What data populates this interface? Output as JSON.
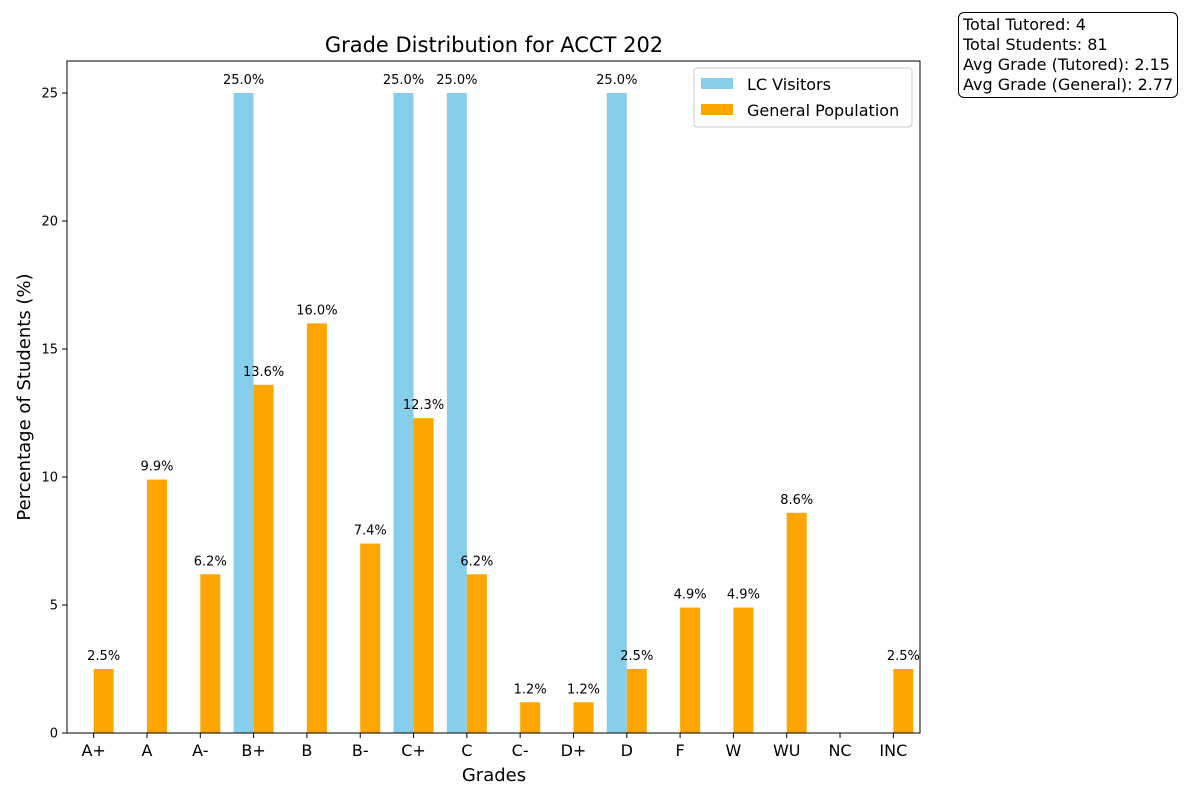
{
  "chart_data": {
    "type": "bar",
    "title": "Grade Distribution for ACCT 202",
    "xlabel": "Grades",
    "ylabel": "Percentage of Students (%)",
    "categories": [
      "A+",
      "A",
      "A-",
      "B+",
      "B",
      "B-",
      "C+",
      "C",
      "C-",
      "D+",
      "D",
      "F",
      "W",
      "WU",
      "NC",
      "INC"
    ],
    "ylim": [
      0,
      26.25
    ],
    "yticks": [
      0,
      5,
      10,
      15,
      20,
      25
    ],
    "grid": false,
    "legend_position": "top-right",
    "series": [
      {
        "name": "LC Visitors",
        "color": "#87ceeb",
        "values": [
          0,
          0,
          0,
          25.0,
          0,
          0,
          25.0,
          25.0,
          0,
          0,
          25.0,
          0,
          0,
          0,
          0,
          0
        ],
        "labels": [
          "",
          "",
          "",
          "25.0%",
          "",
          "",
          "25.0%",
          "25.0%",
          "",
          "",
          "25.0%",
          "",
          "",
          "",
          "",
          ""
        ]
      },
      {
        "name": "General Population",
        "color": "#ffa500",
        "values": [
          2.5,
          9.9,
          6.2,
          13.6,
          16.0,
          7.4,
          12.3,
          6.2,
          1.2,
          1.2,
          2.5,
          4.9,
          4.9,
          8.6,
          0,
          2.5
        ],
        "labels": [
          "2.5%",
          "9.9%",
          "6.2%",
          "13.6%",
          "16.0%",
          "7.4%",
          "12.3%",
          "6.2%",
          "1.2%",
          "1.2%",
          "2.5%",
          "4.9%",
          "4.9%",
          "8.6%",
          "",
          "2.5%"
        ]
      }
    ]
  },
  "stats": {
    "total_tutored": "Total Tutored: 4",
    "total_students": "Total Students: 81",
    "avg_tutored": "Avg Grade (Tutored): 2.15",
    "avg_general": "Avg Grade (General): 2.77"
  }
}
